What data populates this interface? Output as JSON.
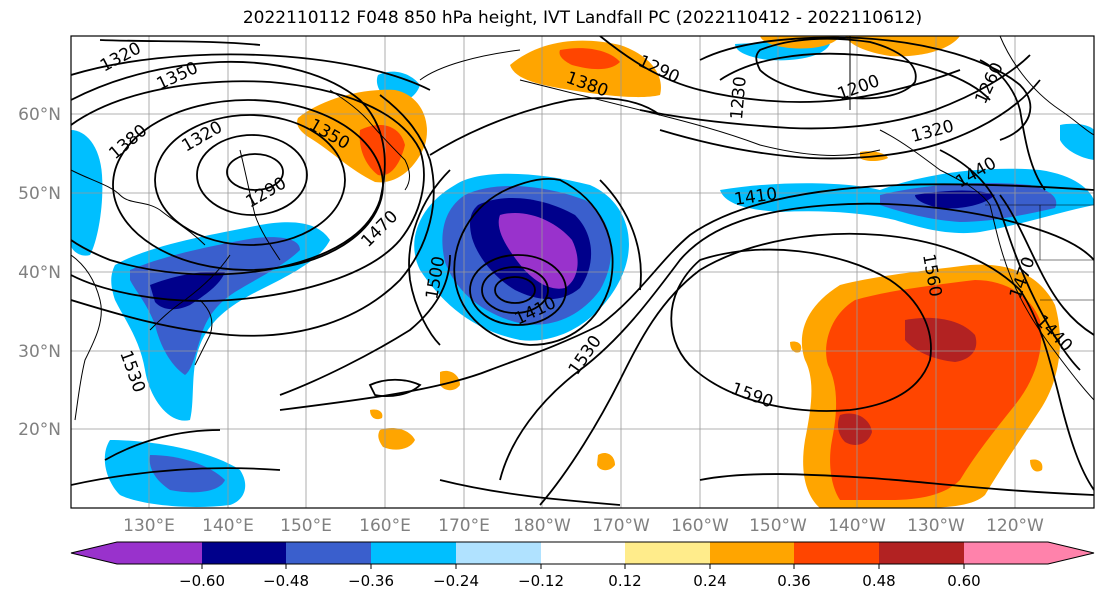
{
  "title": "2022110112 F048 850 hPa height, IVT Landfall PC (2022110412 - 2022110612)",
  "map": {
    "lon_labels": [
      "130°E",
      "140°E",
      "150°E",
      "160°E",
      "170°E",
      "180°W",
      "170°W",
      "160°W",
      "150°W",
      "140°W",
      "130°W",
      "120°W"
    ],
    "lat_labels": [
      "60°N",
      "50°N",
      "40°N",
      "30°N",
      "20°N"
    ],
    "contour_labels": [
      "1320",
      "1350",
      "1320",
      "1380",
      "1290",
      "1350",
      "1470",
      "1500",
      "1410",
      "1380",
      "1530",
      "1290",
      "1230",
      "1200",
      "1260",
      "1320",
      "1410",
      "1440",
      "1470",
      "1440",
      "1560",
      "1590",
      "1530"
    ]
  },
  "colorbar": {
    "tick_labels": [
      "−0.60",
      "−0.48",
      "−0.36",
      "−0.24",
      "−0.12",
      "0.12",
      "0.24",
      "0.36",
      "0.48",
      "0.60"
    ],
    "colors": [
      "#9932cc",
      "#00008b",
      "#3a5fcd",
      "#00bfff",
      "#b0e2ff",
      "#ffffff",
      "#ffec8b",
      "#ffa500",
      "#ff4500",
      "#b22222",
      "#ff82ab"
    ]
  }
}
